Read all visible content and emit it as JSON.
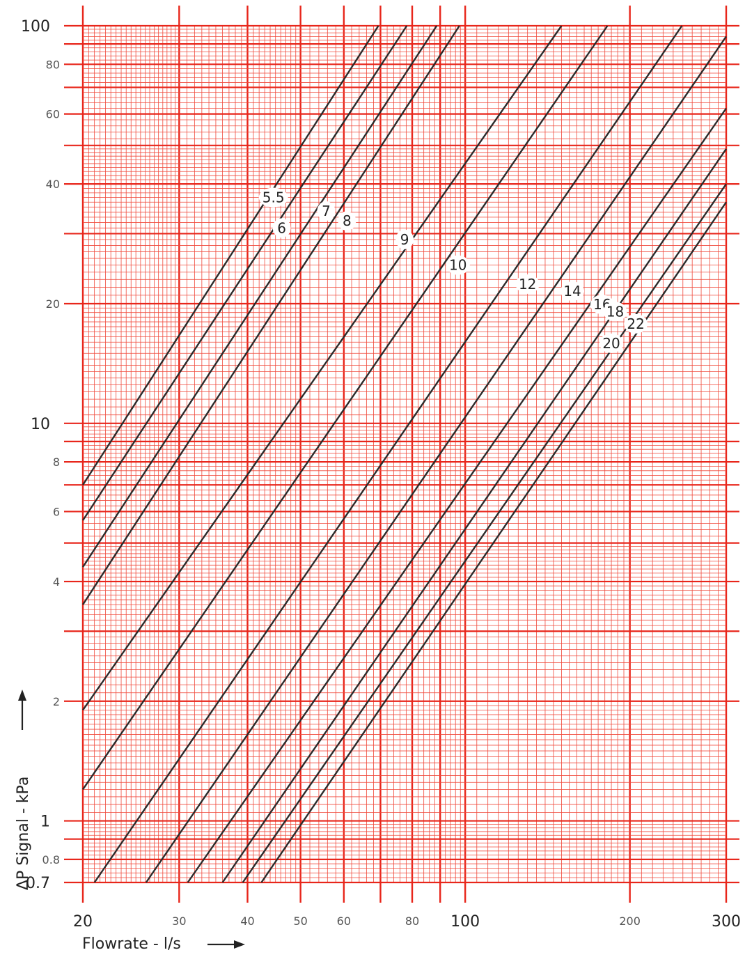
{
  "chart_data": {
    "type": "line",
    "xscale": "log",
    "yscale": "log",
    "xlim": [
      20,
      300
    ],
    "ylim": [
      0.7,
      100
    ],
    "xlabel": "Flowrate - l/s",
    "ylabel": "ΔP  Signal - kPa",
    "x_ticks": [
      {
        "value": 20,
        "label": "20",
        "major": true
      },
      {
        "value": 30,
        "label": "30",
        "major": false
      },
      {
        "value": 40,
        "label": "40",
        "major": false
      },
      {
        "value": 50,
        "label": "50",
        "major": false
      },
      {
        "value": 60,
        "label": "60",
        "major": false
      },
      {
        "value": 80,
        "label": "80",
        "major": false
      },
      {
        "value": 100,
        "label": "100",
        "major": true
      },
      {
        "value": 200,
        "label": "200",
        "major": false
      },
      {
        "value": 300,
        "label": "300",
        "major": true
      }
    ],
    "y_ticks": [
      {
        "value": 0.7,
        "label": "0.7",
        "major": true
      },
      {
        "value": 0.8,
        "label": "0.8",
        "major": false
      },
      {
        "value": 1,
        "label": "1",
        "major": true
      },
      {
        "value": 2,
        "label": "2",
        "major": false
      },
      {
        "value": 4,
        "label": "4",
        "major": false
      },
      {
        "value": 6,
        "label": "6",
        "major": false
      },
      {
        "value": 8,
        "label": "8",
        "major": false
      },
      {
        "value": 10,
        "label": "10",
        "major": true
      },
      {
        "value": 20,
        "label": "20",
        "major": false
      },
      {
        "value": 40,
        "label": "40",
        "major": false
      },
      {
        "value": 60,
        "label": "60",
        "major": false
      },
      {
        "value": 80,
        "label": "80",
        "major": false
      },
      {
        "value": 100,
        "label": "100",
        "major": true
      }
    ],
    "series": [
      {
        "name": "5.5",
        "x": [
          20,
          69.4
        ],
        "y": [
          7.0,
          100
        ],
        "label_at": [
          44.6,
          37
        ]
      },
      {
        "name": "6",
        "x": [
          20,
          78.2
        ],
        "y": [
          5.7,
          100
        ],
        "label_at": [
          46.2,
          31
        ]
      },
      {
        "name": "7",
        "x": [
          20,
          88.7
        ],
        "y": [
          4.35,
          100
        ],
        "label_at": [
          55.7,
          34.2
        ]
      },
      {
        "name": "8",
        "x": [
          20,
          97.6
        ],
        "y": [
          3.5,
          100
        ],
        "label_at": [
          60.8,
          32.3
        ]
      },
      {
        "name": "9",
        "x": [
          20,
          150
        ],
        "y": [
          1.9,
          100
        ],
        "label_at": [
          77.5,
          29
        ]
      },
      {
        "name": "10",
        "x": [
          20,
          182
        ],
        "y": [
          1.2,
          100
        ],
        "label_at": [
          97,
          25
        ]
      },
      {
        "name": "12",
        "x": [
          21,
          249
        ],
        "y": [
          0.7,
          100
        ],
        "label_at": [
          130,
          22.4
        ]
      },
      {
        "name": "14",
        "x": [
          26.1,
          300
        ],
        "y": [
          0.7,
          94
        ]
      },
      {
        "name": "16",
        "x": [
          31.1,
          300
        ],
        "y": [
          0.7,
          62
        ]
      },
      {
        "name": "18",
        "x": [
          36,
          300
        ],
        "y": [
          0.7,
          49
        ]
      },
      {
        "name": "20",
        "x": [
          39.2,
          300
        ],
        "y": [
          0.7,
          40
        ]
      },
      {
        "name": "22",
        "x": [
          42.4,
          300
        ],
        "y": [
          0.7,
          36
        ]
      }
    ],
    "label_positions": {
      "14": [
        157,
        21.5
      ],
      "16": [
        178,
        19.9
      ],
      "18": [
        188,
        19.1
      ],
      "20": [
        185,
        15.9
      ],
      "22": [
        205,
        17.8
      ]
    },
    "grid": true,
    "colors": {
      "grid": "#f04a3c",
      "grid_major": "#e8261b",
      "curve": "#2b2b2b",
      "background": "#ffffff"
    }
  }
}
